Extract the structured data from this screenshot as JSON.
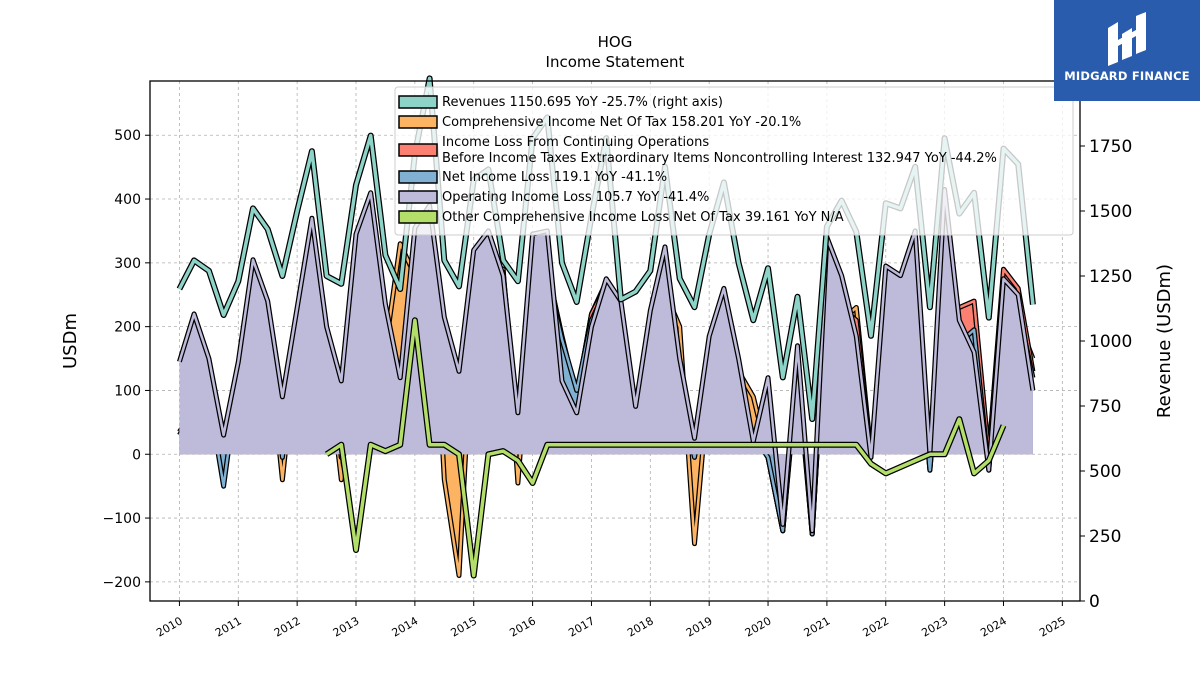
{
  "logo": {
    "text": "MIDGARD FINANCE",
    "icon": "midgard-logo-icon",
    "bg": "#2a5cae"
  },
  "chart_data": {
    "type": "area",
    "title": "HOG",
    "subtitle": "Income Statement",
    "ylabel": "USDm",
    "ylabel_right": "Revenue (USDm)",
    "ylim": [
      -230,
      585
    ],
    "ylim_right": [
      0,
      2000
    ],
    "yticks": [
      -200,
      -100,
      0,
      100,
      200,
      300,
      400,
      500
    ],
    "yticks_right": [
      0,
      250,
      500,
      750,
      1000,
      1250,
      1500,
      1750,
      2000
    ],
    "xlim": [
      2009.5,
      2025.3
    ],
    "xticks": [
      "2010",
      "2011",
      "2012",
      "2013",
      "2014",
      "2015",
      "2016",
      "2017",
      "2018",
      "2019",
      "2020",
      "2021",
      "2022",
      "2023",
      "2024",
      "2025"
    ],
    "grid": true,
    "legend_position": "top",
    "series": [
      {
        "name": "Revenues 1150.695 YoY -25.7% (right axis)",
        "legend_lines": [
          "Revenues  1150.695 YoY -25.7% (right axis)"
        ],
        "color": "#8dd3c7",
        "axis": "right",
        "style": "line",
        "start": 2010.0,
        "values": [
          1200,
          1310,
          1270,
          1100,
          1230,
          1510,
          1430,
          1250,
          1500,
          1730,
          1250,
          1220,
          1600,
          1790,
          1330,
          1200,
          1720,
          2010,
          1310,
          1210,
          1620,
          1660,
          1310,
          1230,
          1780,
          1860,
          1300,
          1150,
          1480,
          1780,
          1160,
          1190,
          1270,
          1670,
          1240,
          1130,
          1410,
          1610,
          1300,
          1080,
          1280,
          860,
          1170,
          700,
          1440,
          1540,
          1420,
          1020,
          1530,
          1510,
          1670,
          1130,
          1780,
          1490,
          1570,
          1090,
          1740,
          1680,
          1140
        ],
        "unit_dates": "quarterly from 2010 Q1 to 2024 Q3"
      },
      {
        "name": "Comprehensive Income Net Of Tax 158.201 YoY -20.1%",
        "legend_lines": [
          "Comprehensive Income Net Of Tax  158.201 YoY -20.1%"
        ],
        "color": "#fdb462",
        "axis": "left",
        "style": "area",
        "start": 2010.0,
        "values": [
          30,
          50,
          65,
          20,
          130,
          210,
          185,
          -40,
          180,
          230,
          160,
          -40,
          200,
          255,
          165,
          330,
          280,
          380,
          -40,
          -190,
          235,
          300,
          290,
          -45,
          255,
          295,
          180,
          90,
          220,
          270,
          80,
          15,
          180,
          255,
          200,
          -140,
          120,
          205,
          130,
          90,
          -5,
          -120,
          150,
          -125,
          265,
          210,
          230,
          0,
          230,
          200,
          230,
          -15,
          260,
          230,
          210,
          0,
          210,
          210,
          150
        ]
      },
      {
        "name": "Income Loss From Continuing Operations Before Income Taxes Extraordinary Items Noncontrolling Interest 132.947 YoY -44.2%",
        "legend_lines": [
          "Income Loss From Continuing Operations",
          "Before Income Taxes Extraordinary Items Noncontrolling Interest  132.947 YoY -44.2%"
        ],
        "color": "#fb8072",
        "axis": "left",
        "style": "area",
        "start": 2010.0,
        "values": [
          35,
          70,
          90,
          -30,
          120,
          195,
          180,
          0,
          190,
          245,
          160,
          -5,
          210,
          270,
          170,
          80,
          275,
          375,
          160,
          90,
          275,
          300,
          285,
          40,
          280,
          290,
          185,
          90,
          220,
          265,
          90,
          15,
          185,
          250,
          100,
          0,
          135,
          210,
          100,
          30,
          -5,
          -120,
          140,
          -125,
          270,
          230,
          210,
          0,
          245,
          230,
          230,
          -25,
          240,
          230,
          240,
          0,
          290,
          260,
          130
        ]
      },
      {
        "name": "Net Income Loss 119.1 YoY -41.1%",
        "legend_lines": [
          "Net Income Loss  119.1 YoY -41.1%"
        ],
        "color": "#80b1d3",
        "axis": "left",
        "style": "area",
        "start": 2010.0,
        "values": [
          30,
          70,
          90,
          -50,
          120,
          190,
          185,
          -5,
          175,
          250,
          170,
          -5,
          220,
          275,
          160,
          75,
          270,
          360,
          150,
          90,
          270,
          300,
          280,
          35,
          255,
          280,
          180,
          100,
          210,
          260,
          80,
          5,
          175,
          245,
          90,
          -5,
          120,
          195,
          90,
          30,
          -5,
          -120,
          130,
          -125,
          260,
          210,
          180,
          0,
          225,
          215,
          230,
          -25,
          245,
          175,
          195,
          -25,
          245,
          230,
          120
        ]
      },
      {
        "name": "Operating Income Loss 105.7 YoY -41.4%",
        "legend_lines": [
          "Operating Income Loss  105.7 YoY -41.4%"
        ],
        "color": "#bebada",
        "axis": "left",
        "style": "area",
        "start": 2010.0,
        "values": [
          145,
          220,
          150,
          30,
          145,
          305,
          240,
          90,
          230,
          370,
          200,
          115,
          345,
          410,
          235,
          120,
          355,
          390,
          215,
          130,
          320,
          350,
          280,
          65,
          345,
          350,
          115,
          65,
          200,
          275,
          240,
          75,
          225,
          325,
          150,
          25,
          185,
          260,
          150,
          20,
          120,
          -110,
          170,
          -120,
          340,
          280,
          185,
          -5,
          295,
          280,
          350,
          0,
          415,
          210,
          160,
          -25,
          275,
          250,
          100
        ]
      },
      {
        "name": "Other Comprehensive Income Loss Net Of Tax 39.161 YoY N/A",
        "legend_lines": [
          "Other Comprehensive Income Loss Net Of Tax  39.161 YoY N/A"
        ],
        "color": "#b3de69",
        "axis": "left",
        "style": "line",
        "start": 2012.5,
        "values": [
          0,
          15,
          -150,
          15,
          5,
          15,
          210,
          15,
          15,
          0,
          -190,
          0,
          5,
          -10,
          -45,
          15,
          15,
          15,
          15,
          15,
          15,
          15,
          15,
          15,
          15,
          15,
          15,
          15,
          15,
          15,
          15,
          15,
          15,
          15,
          15,
          15,
          15,
          -15,
          -30,
          -20,
          -10,
          0,
          0,
          55,
          -30,
          -10,
          45
        ]
      }
    ]
  }
}
